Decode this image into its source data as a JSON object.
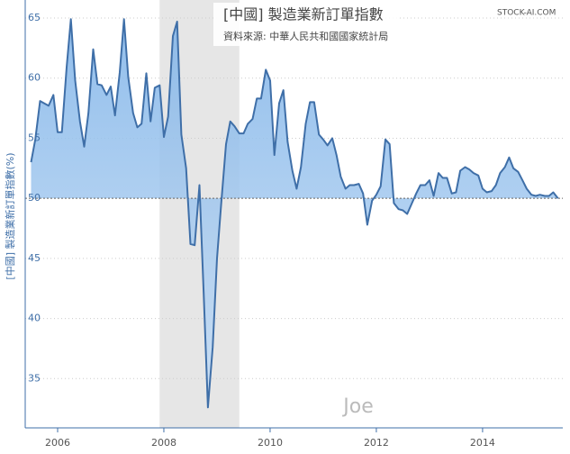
{
  "chart_data": {
    "type": "area",
    "title": "[中國] 製造業新訂單指數",
    "subtitle": "資料來源: 中華人民共和國國家統計局",
    "source": "STOCK-AI.COM",
    "ylabel": "[中國] 製造業新訂單指數(%)",
    "watermark": "Joe",
    "x": [
      2005.5,
      2005.58,
      2005.67,
      2005.75,
      2005.83,
      2005.92,
      2006,
      2006.08,
      2006.17,
      2006.25,
      2006.33,
      2006.42,
      2006.5,
      2006.58,
      2006.67,
      2006.75,
      2006.83,
      2006.92,
      2007,
      2007.08,
      2007.17,
      2007.25,
      2007.33,
      2007.42,
      2007.5,
      2007.58,
      2007.67,
      2007.75,
      2007.83,
      2007.92,
      2008,
      2008.08,
      2008.17,
      2008.25,
      2008.33,
      2008.42,
      2008.5,
      2008.58,
      2008.67,
      2008.75,
      2008.83,
      2008.92,
      2009,
      2009.08,
      2009.17,
      2009.25,
      2009.33,
      2009.42,
      2009.5,
      2009.58,
      2009.67,
      2009.75,
      2009.83,
      2009.92,
      2010,
      2010.08,
      2010.17,
      2010.25,
      2010.33,
      2010.42,
      2010.5,
      2010.58,
      2010.67,
      2010.75,
      2010.83,
      2010.92,
      2011,
      2011.08,
      2011.17,
      2011.25,
      2011.33,
      2011.42,
      2011.5,
      2011.58,
      2011.67,
      2011.75,
      2011.83,
      2011.92,
      2012,
      2012.08,
      2012.17,
      2012.25,
      2012.33,
      2012.42,
      2012.5,
      2012.58,
      2012.67,
      2012.75,
      2012.83,
      2012.92,
      2013,
      2013.08,
      2013.17,
      2013.25,
      2013.33,
      2013.42,
      2013.5,
      2013.58,
      2013.67,
      2013.75,
      2013.83,
      2013.92,
      2014,
      2014.08,
      2014.17,
      2014.25,
      2014.33,
      2014.42,
      2014.5,
      2014.58,
      2014.67,
      2014.75,
      2014.83,
      2014.92,
      2015,
      2015.08,
      2015.17,
      2015.25,
      2015.33,
      2015.42
    ],
    "series": [
      {
        "name": "[中國] 製造業新訂單指數",
        "color": "#3f6fa8",
        "fill": "#9ec6ef",
        "values": [
          53.0,
          54.9,
          58.1,
          57.9,
          57.7,
          58.6,
          55.5,
          55.5,
          60.9,
          64.9,
          59.8,
          56.4,
          54.3,
          57.1,
          62.4,
          59.5,
          59.4,
          58.6,
          59.3,
          56.9,
          60.5,
          64.9,
          60.1,
          57.1,
          55.9,
          56.2,
          60.4,
          56.4,
          59.2,
          59.4,
          55.1,
          56.8,
          63.5,
          64.7,
          55.3,
          52.5,
          46.2,
          46.1,
          51.1,
          42.1,
          32.6,
          37.6,
          45.0,
          49.6,
          54.5,
          56.4,
          56.0,
          55.4,
          55.4,
          56.2,
          56.6,
          58.3,
          58.3,
          60.7,
          59.8,
          53.6,
          57.9,
          59.0,
          54.7,
          52.3,
          50.8,
          52.6,
          56.2,
          58.0,
          58.0,
          55.3,
          54.9,
          54.4,
          55.0,
          53.6,
          51.8,
          50.8,
          51.1,
          51.1,
          51.2,
          50.4,
          47.8,
          49.8,
          50.3,
          51.0,
          54.9,
          54.5,
          49.6,
          49.1,
          49.0,
          48.7,
          49.6,
          50.4,
          51.1,
          51.1,
          51.5,
          50.2,
          52.1,
          51.7,
          51.7,
          50.4,
          50.5,
          52.3,
          52.6,
          52.4,
          52.1,
          51.9,
          50.8,
          50.5,
          50.6,
          51.1,
          52.1,
          52.6,
          53.4,
          52.5,
          52.2,
          51.5,
          50.8,
          50.3,
          50.2,
          50.3,
          50.2,
          50.2,
          50.5,
          50.0
        ]
      }
    ],
    "baseline": 50,
    "shaded_range": [
      2007.92,
      2009.42
    ],
    "xlim": [
      2005.39,
      2015.51
    ],
    "xticks": [
      2006,
      2008,
      2010,
      2012,
      2014
    ],
    "ylim": [
      30.9,
      66.5
    ],
    "yticks": [
      35,
      40,
      45,
      50,
      55,
      60,
      65
    ],
    "grid": true
  }
}
